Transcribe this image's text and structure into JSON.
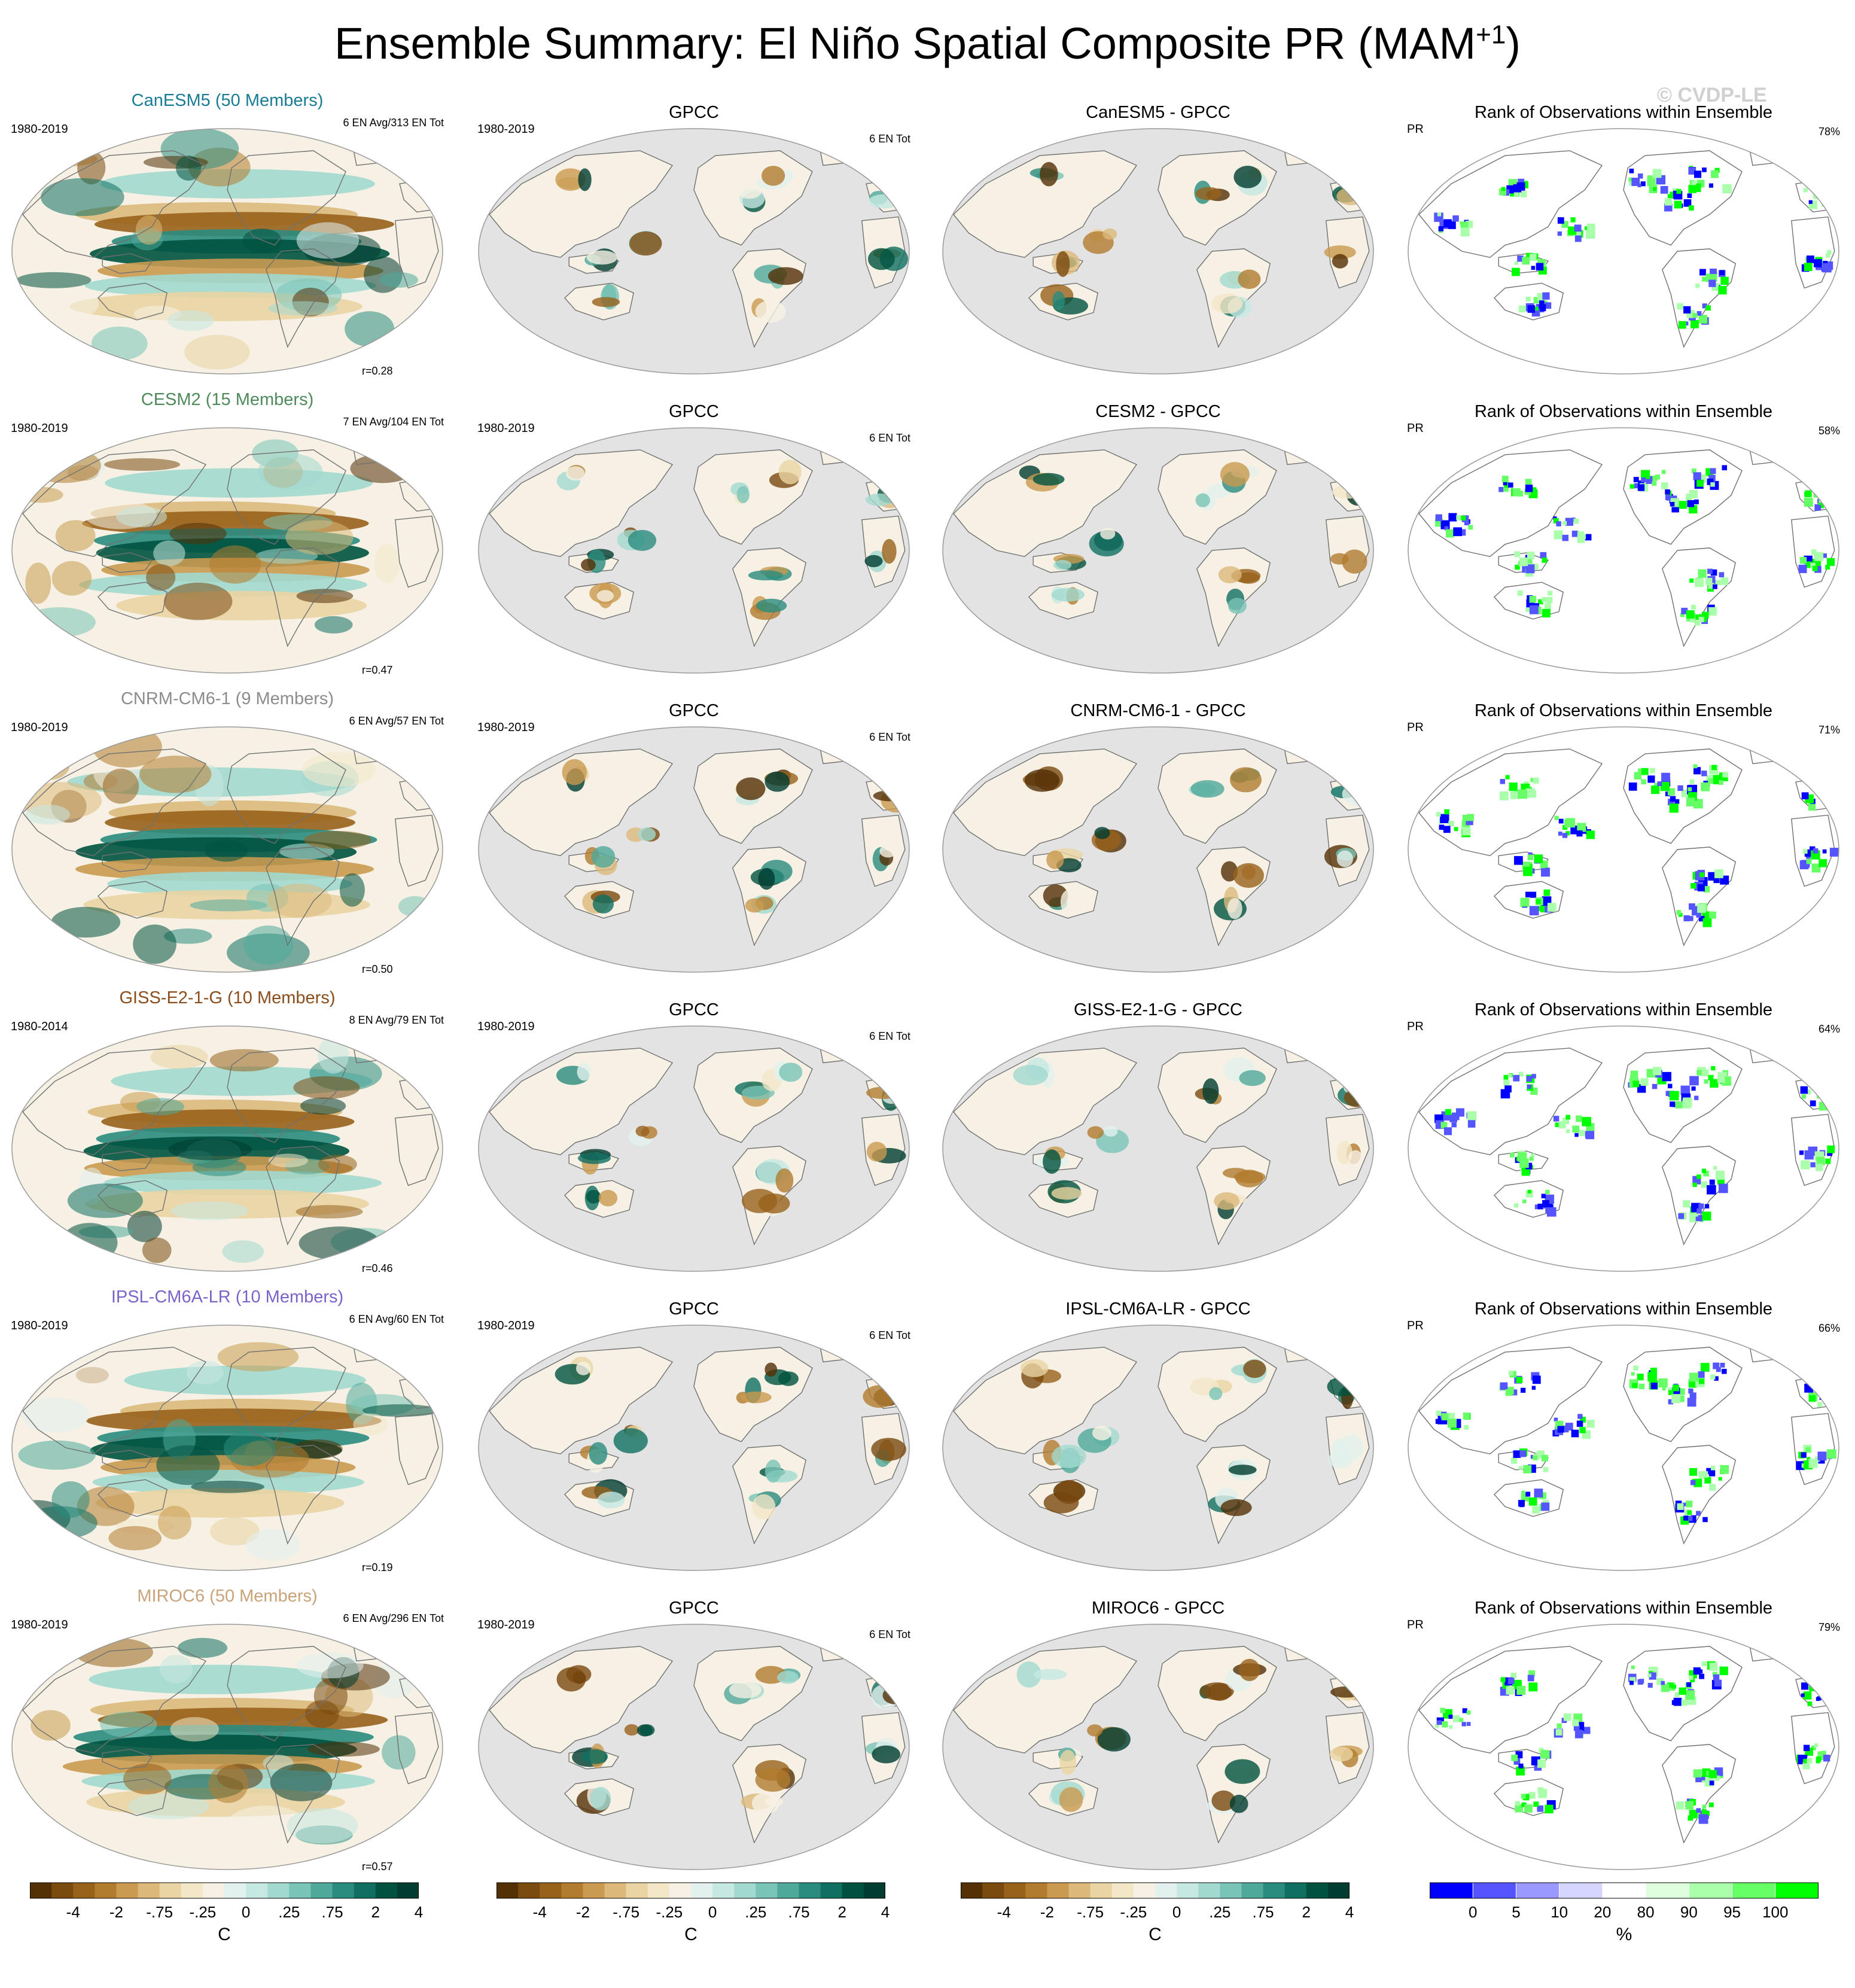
{
  "title": "Ensemble Summary: El Niño Spatial Composite PR (MAM",
  "title_sup": "+1",
  "title_close": ")",
  "watermark": "© CVDP-LE",
  "colors": {
    "brown_teal_scale": [
      "#543005",
      "#7a4a0f",
      "#98621b",
      "#b27c2e",
      "#c99a4f",
      "#dcb97a",
      "#ead4a3",
      "#f4e7c8",
      "#f6f1e4",
      "#e2f1ee",
      "#c6e8e2",
      "#a2d9cf",
      "#79c4b6",
      "#4fa99a",
      "#2a8c7e",
      "#0f6f61",
      "#00523f",
      "#003c30"
    ],
    "rank_scale": [
      "#0000ff",
      "#5555ff",
      "#9999ff",
      "#d5d5ff",
      "#ffffff",
      "#ddffdd",
      "#aaffaa",
      "#66ff66",
      "#00ff00"
    ],
    "ocean_gray": "#e3e3e3",
    "model_title_colors": {
      "CanESM5": "#1a7c93",
      "CESM2": "#4f8a5c",
      "CNRM-CM6-1": "#8c8c8c",
      "GISS-E2-1-G": "#8a4d1c",
      "IPSL-CM6A-LR": "#7b63c9",
      "MIROC6": "#c9a37a"
    }
  },
  "rows": [
    {
      "model": "CanESM5 (50 Members)",
      "model_key": "CanESM5",
      "years": "1980-2019",
      "en_info": "6 EN Avg/313 EN Tot",
      "r": "r=0.28",
      "obs_title": "GPCC",
      "obs_years": "1980-2019",
      "obs_en": "6 EN Tot",
      "diff_title": "CanESM5 - GPCC",
      "rank_title": "Rank of Observations within Ensemble",
      "rank_var": "PR",
      "rank_pct": "78%"
    },
    {
      "model": "CESM2 (15 Members)",
      "model_key": "CESM2",
      "years": "1980-2019",
      "en_info": "7 EN Avg/104 EN Tot",
      "r": "r=0.47",
      "obs_title": "GPCC",
      "obs_years": "1980-2019",
      "obs_en": "6 EN Tot",
      "diff_title": "CESM2 - GPCC",
      "rank_title": "Rank of Observations within Ensemble",
      "rank_var": "PR",
      "rank_pct": "58%"
    },
    {
      "model": "CNRM-CM6-1 (9 Members)",
      "model_key": "CNRM-CM6-1",
      "years": "1980-2019",
      "en_info": "6 EN Avg/57 EN Tot",
      "r": "r=0.50",
      "obs_title": "GPCC",
      "obs_years": "1980-2019",
      "obs_en": "6 EN Tot",
      "diff_title": "CNRM-CM6-1 - GPCC",
      "rank_title": "Rank of Observations within Ensemble",
      "rank_var": "PR",
      "rank_pct": "71%"
    },
    {
      "model": "GISS-E2-1-G (10 Members)",
      "model_key": "GISS-E2-1-G",
      "years": "1980-2014",
      "en_info": "8 EN Avg/79 EN Tot",
      "r": "r=0.46",
      "obs_title": "GPCC",
      "obs_years": "1980-2019",
      "obs_en": "6 EN Tot",
      "diff_title": "GISS-E2-1-G - GPCC",
      "rank_title": "Rank of Observations within Ensemble",
      "rank_var": "PR",
      "rank_pct": "64%"
    },
    {
      "model": "IPSL-CM6A-LR (10 Members)",
      "model_key": "IPSL-CM6A-LR",
      "years": "1980-2019",
      "en_info": "6 EN Avg/60 EN Tot",
      "r": "r=0.19",
      "obs_title": "GPCC",
      "obs_years": "1980-2019",
      "obs_en": "6 EN Tot",
      "diff_title": "IPSL-CM6A-LR - GPCC",
      "rank_title": "Rank of Observations within Ensemble",
      "rank_var": "PR",
      "rank_pct": "66%"
    },
    {
      "model": "MIROC6 (50 Members)",
      "model_key": "MIROC6",
      "years": "1980-2019",
      "en_info": "6 EN Avg/296 EN Tot",
      "r": "r=0.57",
      "obs_title": "GPCC",
      "obs_years": "1980-2019",
      "obs_en": "6 EN Tot",
      "diff_title": "MIROC6 - GPCC",
      "rank_title": "Rank of Observations within Ensemble",
      "rank_var": "PR",
      "rank_pct": "79%"
    }
  ],
  "colorbars": [
    {
      "labels": [
        "-4",
        "-2",
        "-.75",
        "-.25",
        "0",
        ".25",
        ".75",
        "2",
        "4"
      ],
      "unit": "C"
    },
    {
      "labels": [
        "-4",
        "-2",
        "-.75",
        "-.25",
        "0",
        ".25",
        ".75",
        "2",
        "4"
      ],
      "unit": "C"
    },
    {
      "labels": [
        "-4",
        "-2",
        "-.75",
        "-.25",
        "0",
        ".25",
        ".75",
        "2",
        "4"
      ],
      "unit": "C"
    },
    {
      "labels": [
        "0",
        "5",
        "10",
        "20",
        "80",
        "90",
        "95",
        "100"
      ],
      "unit": "%"
    }
  ]
}
